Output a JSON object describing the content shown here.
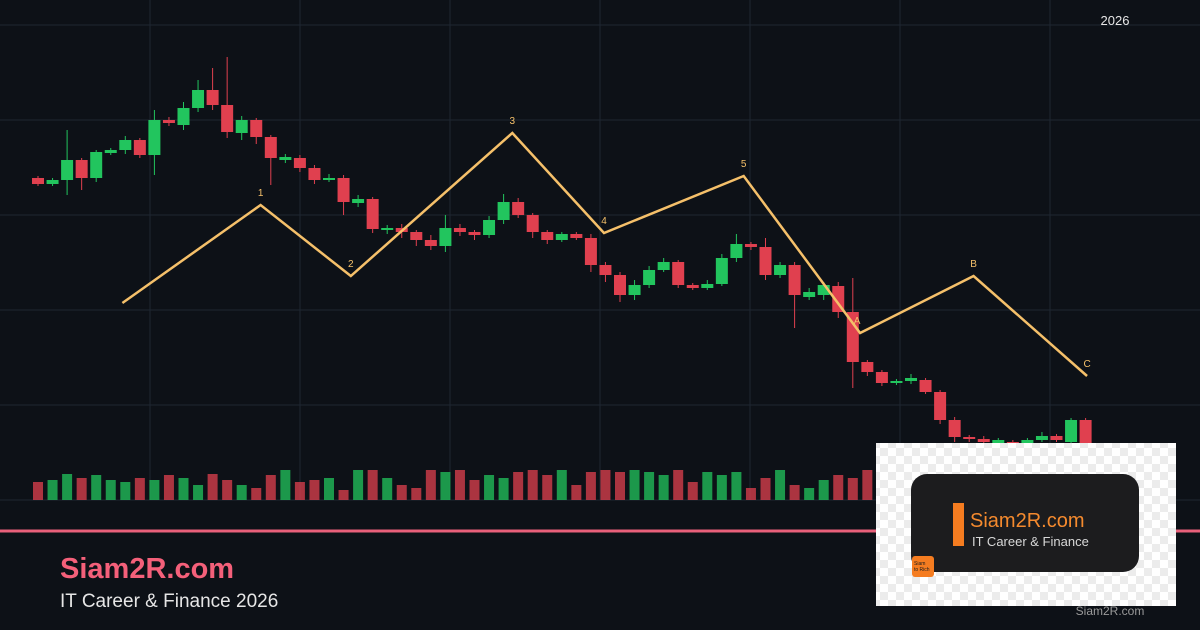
{
  "chart_data": {
    "type": "candlestick",
    "annotation": "2026",
    "ylim": [
      0,
      475
    ],
    "xlim": [
      1,
      73
    ],
    "up_color": "#22c55e",
    "down_color": "#e0404f",
    "x": [
      1,
      2,
      3,
      4,
      5,
      6,
      7,
      8,
      9,
      10,
      11,
      12,
      13,
      14,
      15,
      16,
      17,
      18,
      19,
      20,
      21,
      22,
      23,
      24,
      25,
      26,
      27,
      28,
      29,
      30,
      31,
      32,
      33,
      34,
      35,
      36,
      37,
      38,
      39,
      40,
      41,
      42,
      43,
      44,
      45,
      46,
      47,
      48,
      49,
      50,
      51,
      52,
      53,
      54,
      55,
      56,
      57,
      58,
      59,
      60,
      61,
      62,
      63,
      64,
      65,
      66,
      67,
      68,
      69,
      70,
      71,
      72,
      73
    ],
    "open": [
      322,
      316,
      320,
      340,
      322,
      347,
      350,
      360,
      345,
      380,
      375,
      392,
      410,
      395,
      367,
      380,
      363,
      340,
      342,
      332,
      320,
      322,
      297,
      301,
      270,
      272,
      268,
      260,
      254,
      272,
      268,
      265,
      280,
      298,
      285,
      268,
      260,
      266,
      262,
      235,
      225,
      205,
      215,
      230,
      238,
      215,
      212,
      216,
      242,
      256,
      253,
      225,
      235,
      203,
      205,
      214,
      188,
      138,
      128,
      117,
      119,
      120,
      108,
      80,
      63,
      61,
      56,
      58,
      55,
      60,
      64,
      58,
      80
    ],
    "high": [
      324,
      322,
      370,
      342,
      350,
      352,
      364,
      362,
      390,
      383,
      398,
      420,
      432,
      443,
      384,
      382,
      365,
      346,
      345,
      335,
      326,
      325,
      305,
      303,
      275,
      276,
      270,
      265,
      285,
      276,
      270,
      284,
      306,
      302,
      287,
      270,
      268,
      268,
      266,
      238,
      228,
      220,
      234,
      242,
      240,
      217,
      220,
      246,
      266,
      258,
      262,
      238,
      238,
      212,
      218,
      218,
      222,
      140,
      130,
      121,
      126,
      122,
      110,
      83,
      65,
      64,
      62,
      60,
      62,
      68,
      66,
      82,
      82
    ],
    "low": [
      314,
      314,
      305,
      310,
      318,
      345,
      346,
      342,
      325,
      374,
      370,
      388,
      390,
      362,
      360,
      356,
      315,
      337,
      328,
      316,
      318,
      285,
      293,
      267,
      266,
      262,
      254,
      250,
      248,
      264,
      260,
      262,
      276,
      282,
      262,
      256,
      258,
      260,
      228,
      218,
      198,
      200,
      212,
      228,
      212,
      210,
      210,
      214,
      238,
      250,
      220,
      222,
      172,
      200,
      200,
      182,
      112,
      124,
      114,
      115,
      116,
      106,
      76,
      58,
      58,
      55,
      52,
      50,
      52,
      58,
      58,
      56,
      50
    ],
    "close": [
      316,
      320,
      340,
      322,
      348,
      350,
      360,
      345,
      380,
      377,
      392,
      410,
      395,
      368,
      380,
      363,
      342,
      343,
      332,
      320,
      322,
      298,
      301,
      271,
      272,
      268,
      260,
      254,
      272,
      268,
      265,
      280,
      298,
      285,
      268,
      260,
      266,
      262,
      235,
      225,
      205,
      215,
      230,
      238,
      215,
      212,
      216,
      242,
      256,
      253,
      225,
      235,
      205,
      208,
      215,
      188,
      138,
      128,
      117,
      119,
      122,
      108,
      80,
      63,
      61,
      58,
      60,
      54,
      60,
      64,
      60,
      80,
      55
    ],
    "volume_lim": [
      0,
      100
    ],
    "volume": [
      18,
      20,
      26,
      22,
      25,
      20,
      18,
      22,
      20,
      25,
      22,
      15,
      26,
      20,
      15,
      12,
      25,
      30,
      18,
      20,
      22,
      10,
      30,
      30,
      22,
      15,
      12,
      30,
      28,
      30,
      20,
      25,
      22,
      28,
      30,
      25,
      30,
      15,
      28,
      30,
      28,
      30,
      28,
      25,
      30,
      18,
      28,
      25,
      28,
      12,
      22,
      30,
      15,
      12,
      20,
      25,
      22,
      30,
      30,
      20,
      25,
      28,
      22,
      30,
      25,
      20,
      18,
      22,
      20,
      25,
      22,
      28,
      24
    ],
    "wave": {
      "color": "#f5c06a",
      "labels": [
        "1",
        "2",
        "3",
        "4",
        "5",
        "A",
        "B",
        "C"
      ],
      "x": [
        6.8,
        16.3,
        22.5,
        33.6,
        39.9,
        49.5,
        57.5,
        65.3,
        73.1
      ],
      "y": [
        197,
        295,
        224,
        367,
        267,
        324,
        167,
        224,
        124
      ]
    }
  },
  "brand": {
    "title": "Siam2R.com",
    "subtitle": "IT Career & Finance 2026"
  },
  "logo": {
    "name": "Siam2R.com",
    "tagline": "IT Career & Finance",
    "badge": [
      "Siam",
      "to Rich"
    ]
  },
  "watermark": "Siam2R.com"
}
